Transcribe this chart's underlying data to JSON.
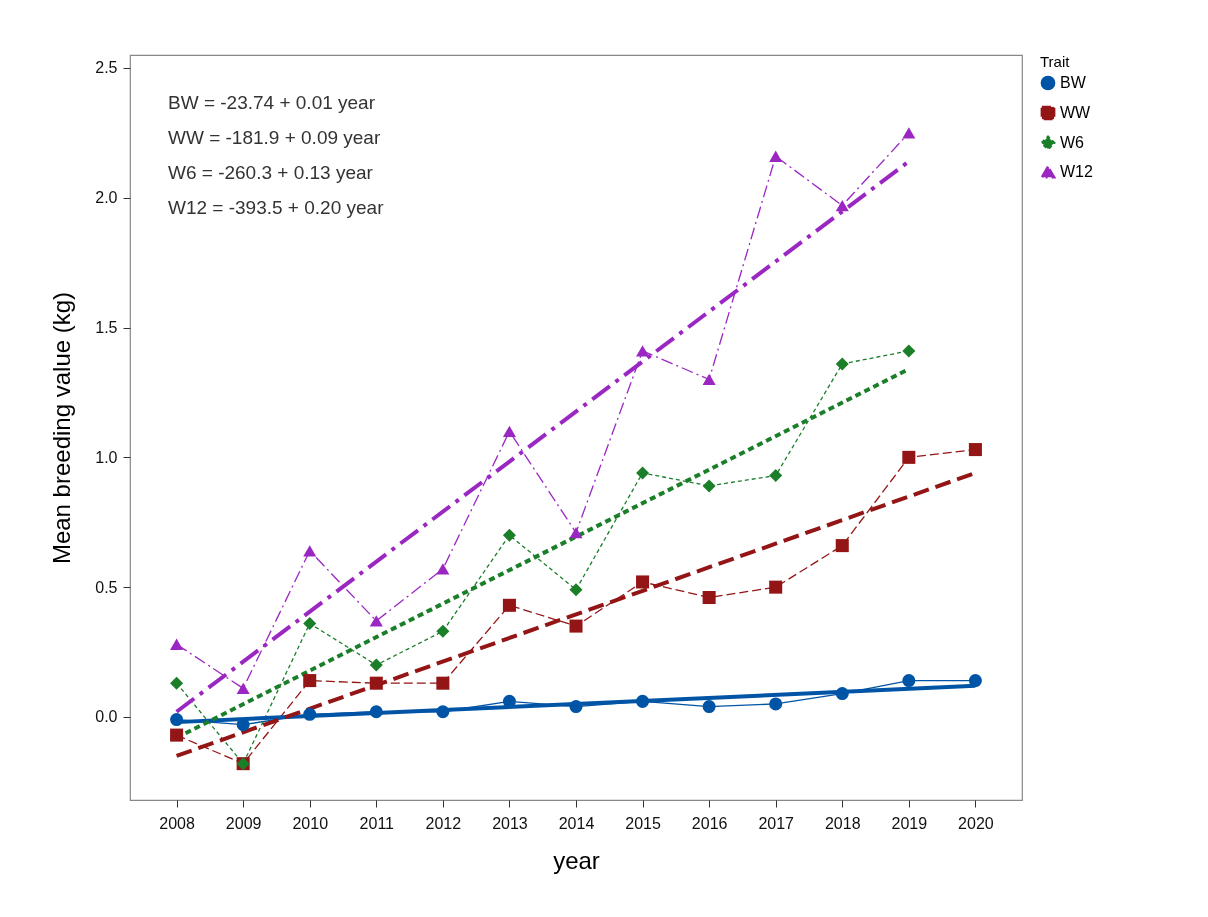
{
  "chart_data": {
    "type": "line",
    "xlabel": "year",
    "ylabel": "Mean breeding value (kg)",
    "legend_title": "Trait",
    "legend": "top right",
    "annotations": [
      "BW = -23.74 + 0.01 year",
      "WW = -181.9 + 0.09 year",
      "W6 = -260.3 + 0.13 year",
      "W12 = -393.5 + 0.20 year"
    ],
    "x": [
      2008,
      2009,
      2010,
      2011,
      2012,
      2013,
      2014,
      2015,
      2016,
      2017,
      2018,
      2019,
      2020
    ],
    "xlim": [
      2007.3,
      2020.7
    ],
    "xticks": [
      2008,
      2009,
      2010,
      2011,
      2012,
      2013,
      2014,
      2015,
      2016,
      2017,
      2018,
      2019,
      2020
    ],
    "ylim": [
      -0.32,
      2.55
    ],
    "yticks": [
      {
        "value": 0,
        "label": "0.0"
      },
      {
        "value": 0.5,
        "label": "0.5"
      },
      {
        "value": 1,
        "label": "1.0"
      },
      {
        "value": 1.5,
        "label": "1.5"
      },
      {
        "value": 2,
        "label": "2.0"
      },
      {
        "value": 2.5,
        "label": "2.5"
      }
    ],
    "series": [
      {
        "name": "BW",
        "color": "#0054a6",
        "marker": "circle",
        "line_style": "solid",
        "values": [
          -0.01,
          -0.03,
          0.01,
          0.02,
          0.02,
          0.06,
          0.04,
          0.06,
          0.04,
          0.05,
          0.09,
          0.14,
          0.14
        ]
      },
      {
        "name": "WW",
        "color": "#931515",
        "marker": "square",
        "line_style": "dashed",
        "values": [
          -0.07,
          -0.18,
          0.14,
          0.13,
          0.13,
          0.43,
          0.35,
          0.52,
          0.46,
          0.5,
          0.66,
          1.0,
          1.03
        ]
      },
      {
        "name": "W6",
        "color": "#1b7f2a",
        "marker": "diamond",
        "line_style": "dotted",
        "values": [
          0.13,
          -0.18,
          0.36,
          0.2,
          0.33,
          0.7,
          0.49,
          0.94,
          0.89,
          0.93,
          1.36,
          1.41,
          null
        ]
      },
      {
        "name": "W12",
        "color": "#9b27c3",
        "marker": "triangle",
        "line_style": "dashdot",
        "values": [
          0.28,
          0.11,
          0.64,
          0.37,
          0.57,
          1.1,
          0.71,
          1.41,
          1.3,
          2.16,
          1.97,
          2.25,
          null
        ]
      },
      {
        "type": "line",
        "color": "#0054a6",
        "marker": "none",
        "line_style": "solid",
        "x": [
          2008,
          2020
        ],
        "values": [
          -0.02,
          0.12
        ]
      },
      {
        "type": "line",
        "color": "#931515",
        "marker": "none",
        "line_style": "dashed",
        "x": [
          2008,
          2020
        ],
        "values": [
          -0.15,
          0.94
        ]
      },
      {
        "type": "line",
        "color": "#1b7f2a",
        "marker": "none",
        "line_style": "dotted",
        "x": [
          2008,
          2019
        ],
        "values": [
          -0.08,
          1.34
        ]
      },
      {
        "type": "line",
        "color": "#9b27c3",
        "marker": "none",
        "line_style": "dashdot",
        "x": [
          2008,
          2019
        ],
        "values": [
          0.02,
          2.14
        ]
      }
    ]
  }
}
